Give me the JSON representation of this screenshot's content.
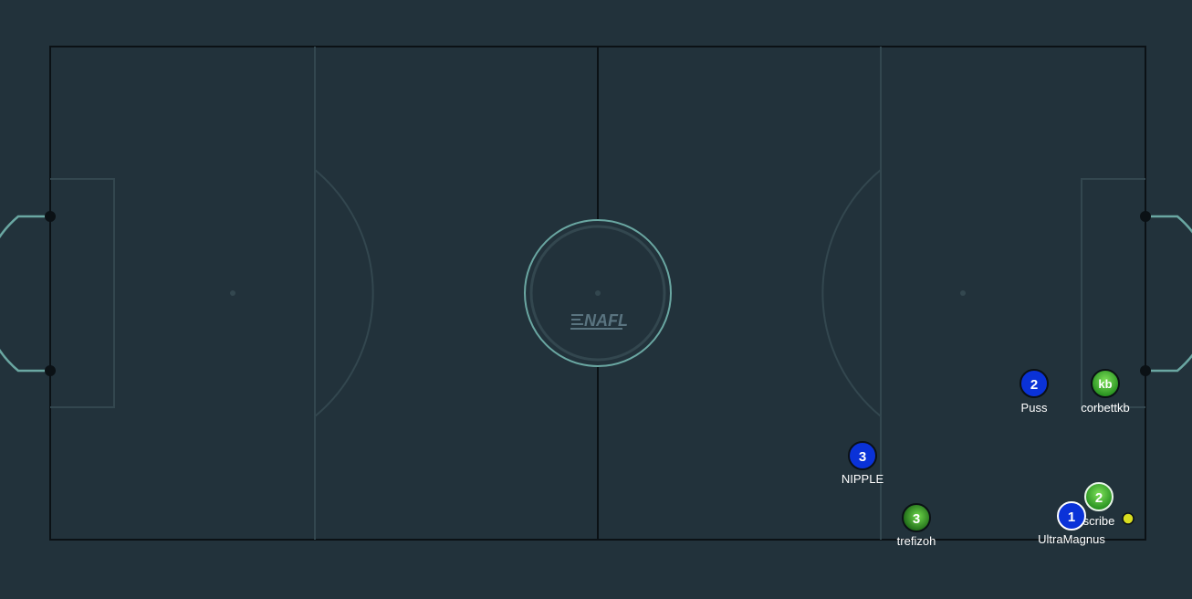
{
  "colors": {
    "background": "#22323b",
    "outline": "#0b1115",
    "inner_lines": "#33474f",
    "goal_lines": "#6aa7a2",
    "team_blue": "#0a32d8",
    "team_green": "#3fbf2a",
    "ball": "#d8dd20"
  },
  "logo": {
    "text": "NAFL"
  },
  "players": [
    {
      "id": "puss",
      "number": "2",
      "name": "Puss",
      "team": "blue"
    },
    {
      "id": "corbettkb",
      "number": "kb",
      "name": "corbettkb",
      "team": "green"
    },
    {
      "id": "nipple",
      "number": "3",
      "name": "NIPPLE",
      "team": "blue"
    },
    {
      "id": "scribe",
      "number": "2",
      "name": "scribe",
      "team": "green"
    },
    {
      "id": "trefizoh",
      "number": "3",
      "name": "trefizoh",
      "team": "green"
    },
    {
      "id": "ultramagnus",
      "number": "1",
      "name": "UltraMagnus",
      "team": "blue"
    }
  ],
  "ball": {
    "icon": "ball-icon"
  }
}
